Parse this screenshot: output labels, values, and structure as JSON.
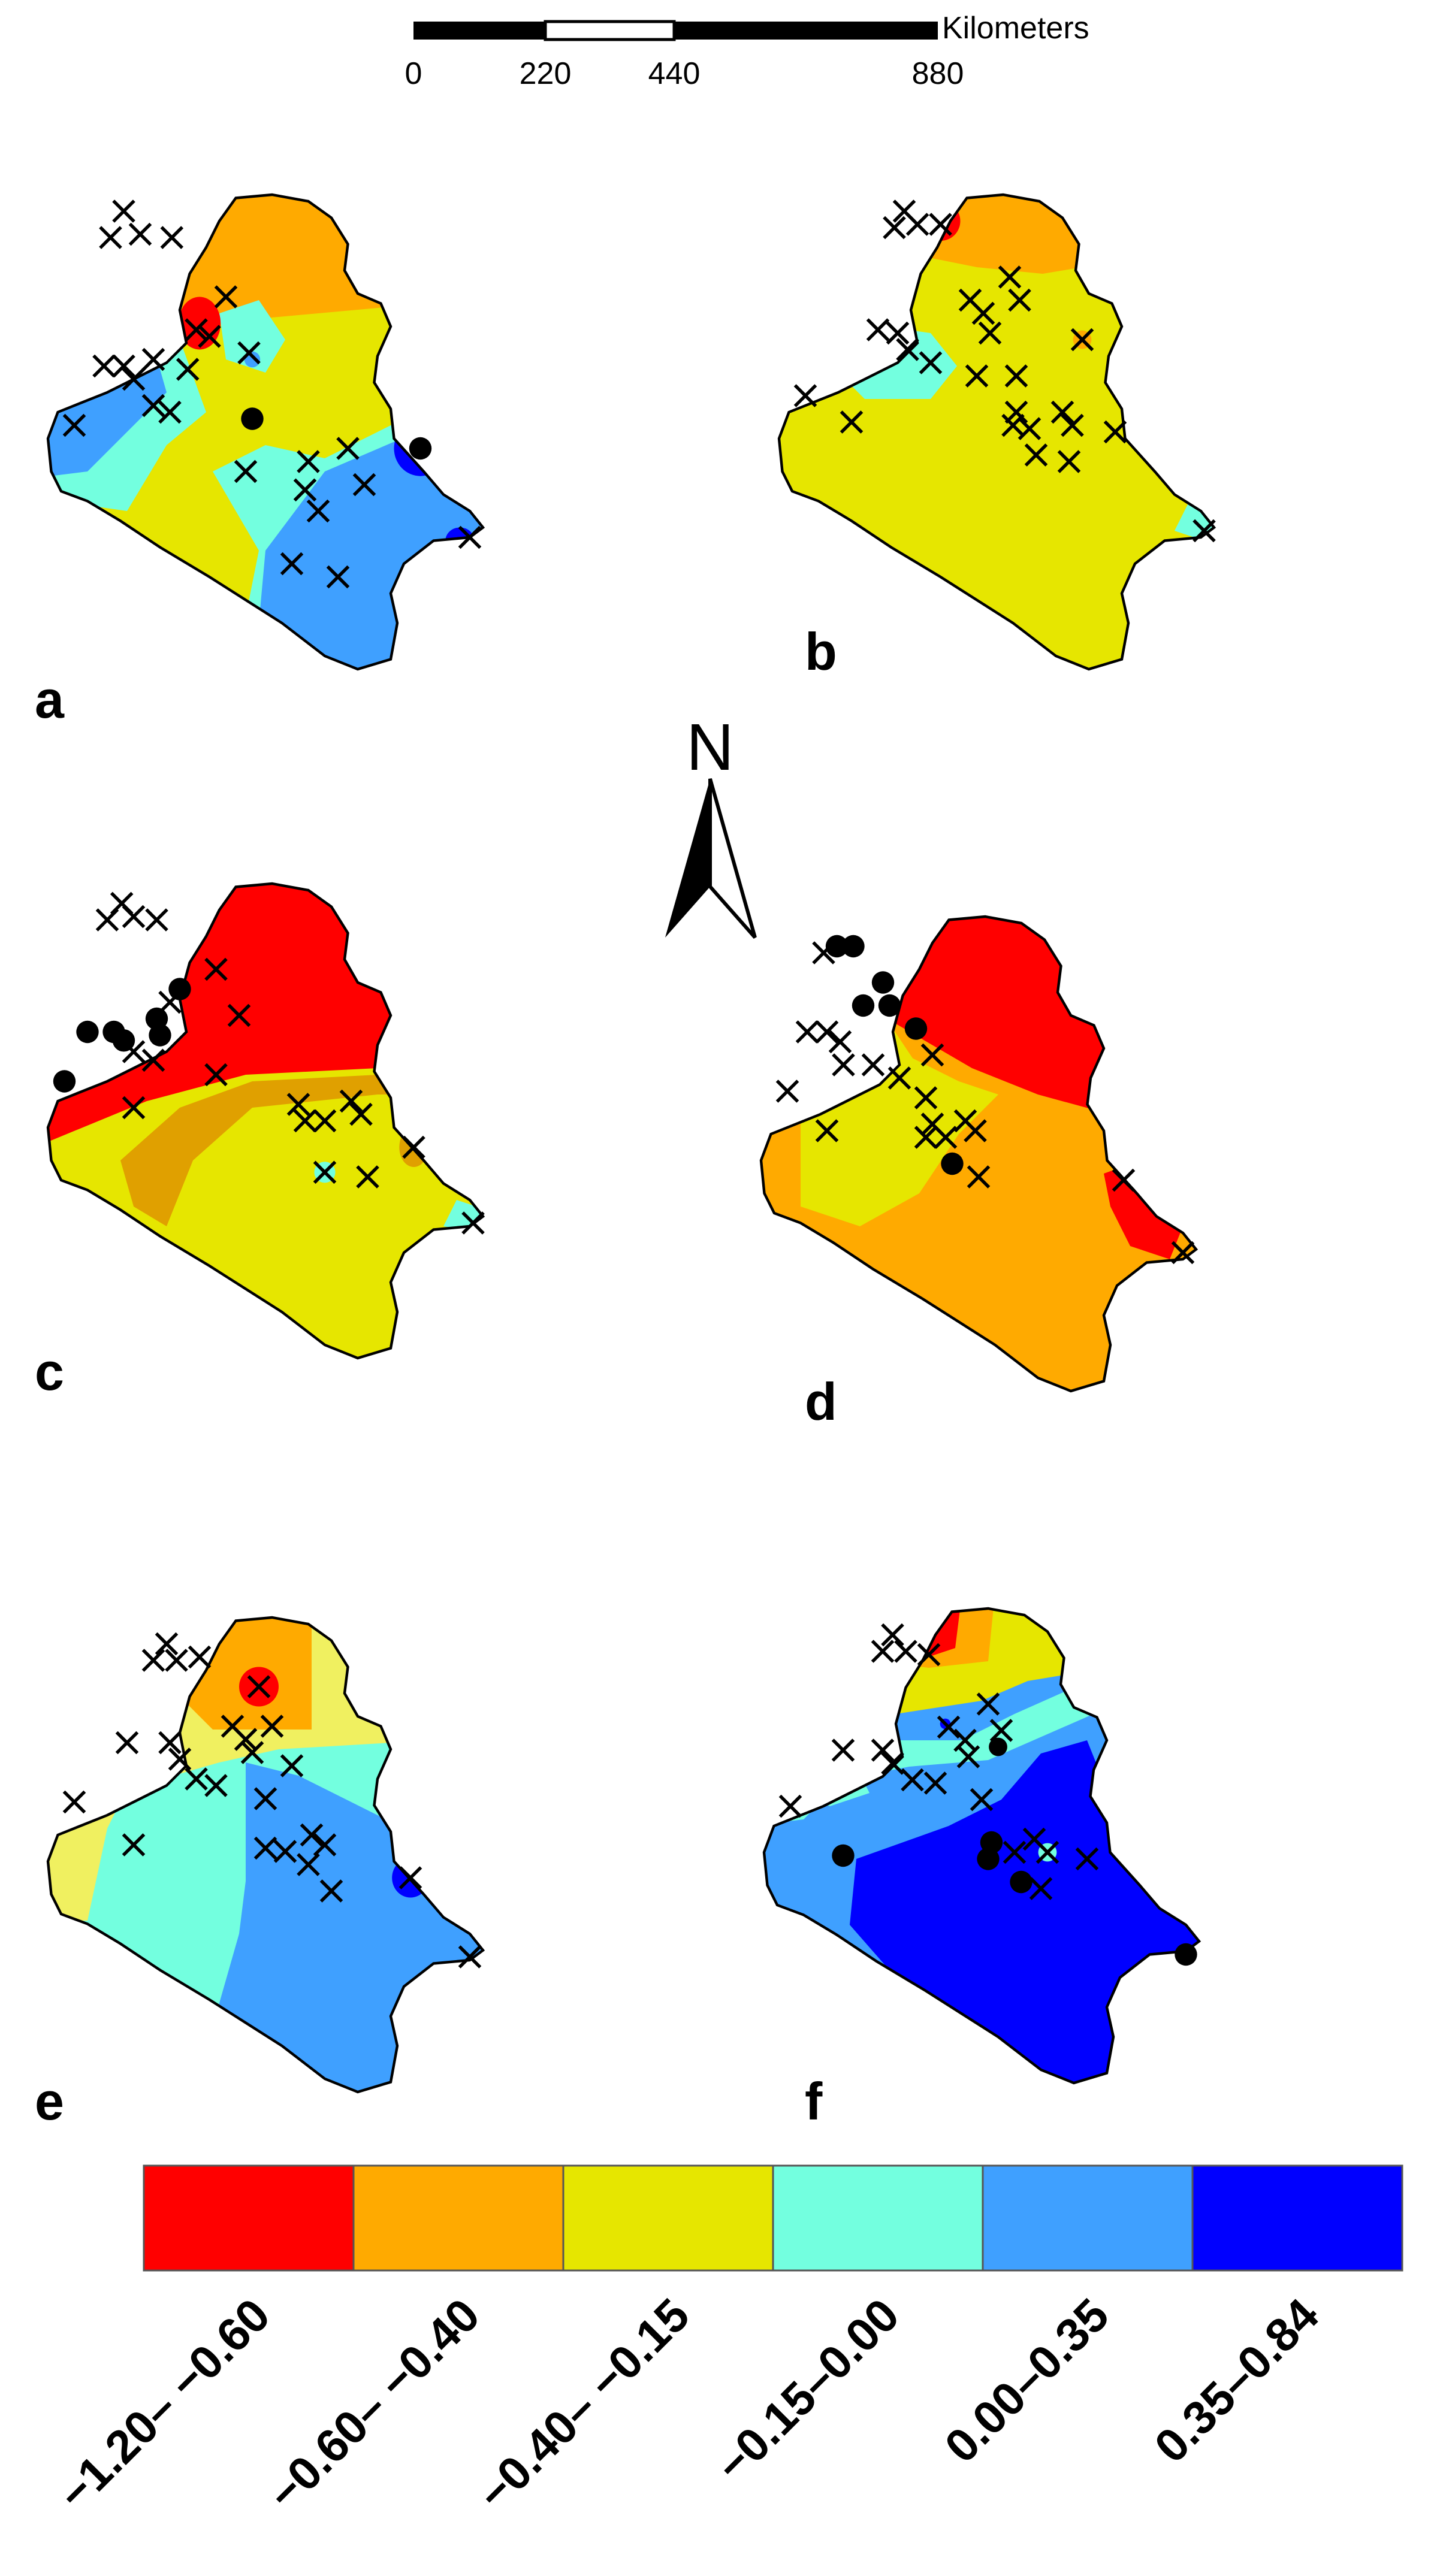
{
  "scale_bar": {
    "unit_label": "Kilometers",
    "ticks": [
      "0",
      "220",
      "440",
      "880"
    ]
  },
  "north_arrow": {
    "label": "N"
  },
  "panels": [
    {
      "id": "a",
      "label": "a"
    },
    {
      "id": "b",
      "label": "b"
    },
    {
      "id": "c",
      "label": "c"
    },
    {
      "id": "d",
      "label": "d"
    },
    {
      "id": "e",
      "label": "e"
    },
    {
      "id": "f",
      "label": "f"
    }
  ],
  "legend": {
    "classes": [
      {
        "label": "−1.20– −0.60",
        "color": "#ff0000"
      },
      {
        "label": "−0.60– −0.40",
        "color": "#ffaa00"
      },
      {
        "label": "−0.40– −0.15",
        "color": "#e6e600"
      },
      {
        "label": "−0.15–0.00",
        "color": "#73ffdf"
      },
      {
        "label": "0.00–0.35",
        "color": "#3fa0ff"
      },
      {
        "label": "0.35–0.84",
        "color": "#0000ff"
      }
    ]
  },
  "symbols": {
    "cross": "non-significant-station-icon",
    "dot": "significant-station-icon"
  }
}
